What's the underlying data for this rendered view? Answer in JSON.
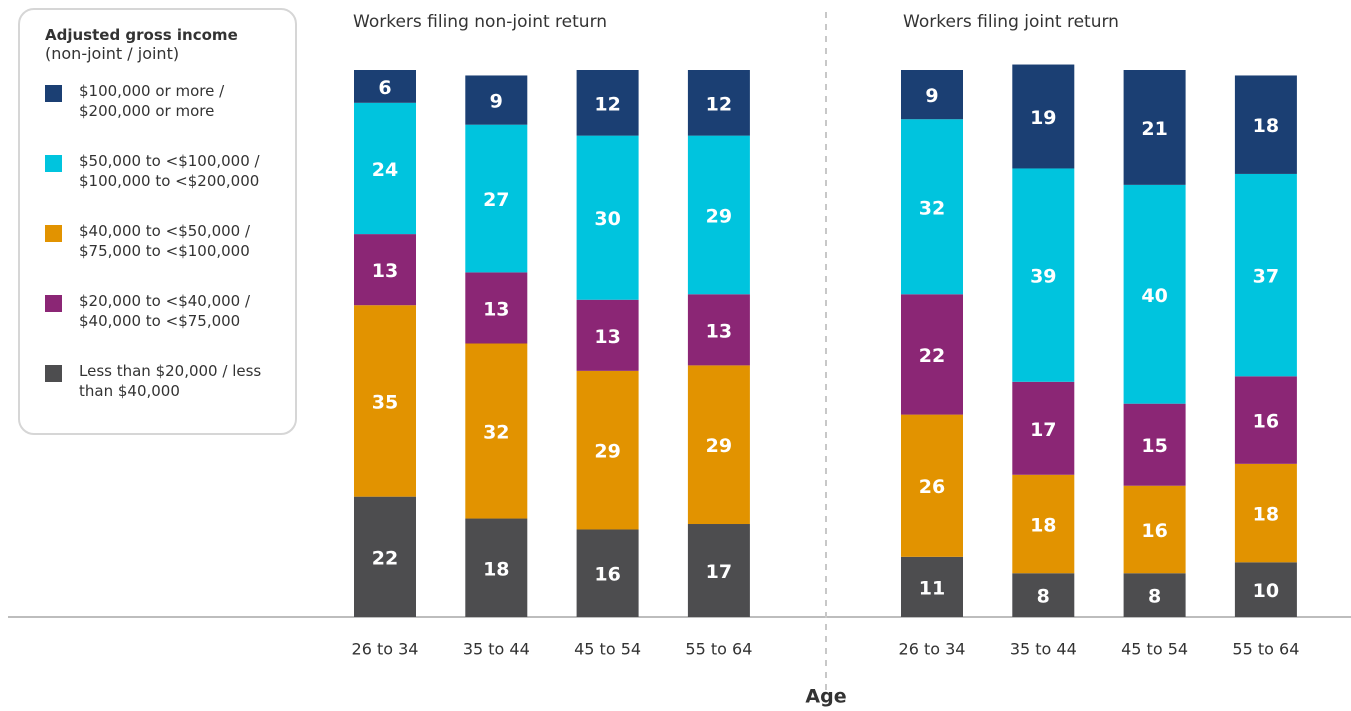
{
  "legend": {
    "title": "Adjusted gross income",
    "subtitle": "(non-joint / joint)"
  },
  "x_label": "Age",
  "chart_data": [
    {
      "type": "stacked_bar",
      "title": "Workers filing non-joint return",
      "categories": [
        "26 to 34",
        "35 to 44",
        "45 to 54",
        "55 to 64"
      ],
      "ylim": [
        0,
        100
      ],
      "series": [
        {
          "name": "Less than $20,000 / less than $40,000",
          "color": "#4d4d4f",
          "values": [
            22,
            18,
            16,
            17
          ]
        },
        {
          "name": "$40,000 to <$50,000 / $75,000 to <$100,000",
          "color": "#e29300",
          "values": [
            35,
            32,
            29,
            29
          ]
        },
        {
          "name": "$20,000 to <$40,000 / $40,000 to <$75,000",
          "color": "#8b2675",
          "values": [
            13,
            13,
            13,
            13
          ]
        },
        {
          "name": "$50,000 to <$100,000 / $100,000 to <$200,000",
          "color": "#00c4de",
          "values": [
            24,
            27,
            30,
            29
          ]
        },
        {
          "name": "$100,000 or more / $200,000 or more",
          "color": "#1b3f73",
          "values": [
            6,
            9,
            12,
            12
          ]
        }
      ]
    },
    {
      "type": "stacked_bar",
      "title": "Workers filing joint return",
      "categories": [
        "26 to 34",
        "35 to 44",
        "45 to 54",
        "55 to 64"
      ],
      "ylim": [
        0,
        100
      ],
      "series": [
        {
          "color": "#4d4d4f",
          "values": [
            11,
            8,
            8,
            10
          ]
        },
        {
          "color": "#e29300",
          "values": [
            26,
            18,
            16,
            18
          ]
        },
        {
          "color": "#8b2675",
          "values": [
            22,
            17,
            15,
            16
          ]
        },
        {
          "color": "#00c4de",
          "values": [
            32,
            39,
            40,
            37
          ]
        },
        {
          "color": "#1b3f73",
          "values": [
            9,
            19,
            21,
            18
          ]
        }
      ]
    }
  ]
}
